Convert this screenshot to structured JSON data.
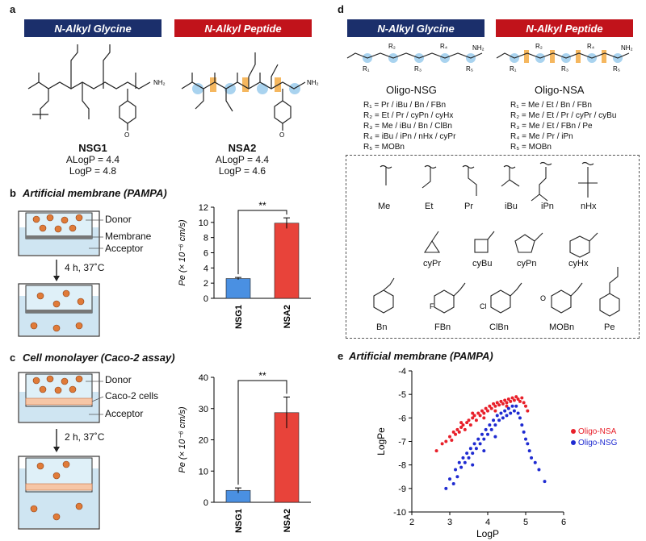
{
  "panels": {
    "a": "a",
    "b": "b",
    "c": "c",
    "d": "d",
    "e": "e"
  },
  "panel_a": {
    "banner_left": "N-Alkyl Glycine",
    "banner_right": "N-Alkyl Peptide",
    "left_name": "NSG1",
    "left_alogp": "ALogP = 4.4",
    "left_logp": "LogP = 4.8",
    "right_name": "NSA2",
    "right_alogp": "ALogP = 4.4",
    "right_logp": "LogP = 4.6",
    "nh2": "NH₂",
    "ome": "O",
    "colors": {
      "navy": "#1b2f6b",
      "red": "#c1131b",
      "highlight_blue": "#a9d3ef",
      "highlight_orange": "#f5b75f"
    }
  },
  "panel_b": {
    "title": "Artificial membrane (PAMPA)",
    "donor": "Donor",
    "membrane": "Membrane",
    "acceptor": "Acceptor",
    "condition": "4 h, 37˚C"
  },
  "panel_c": {
    "title": "Cell monolayer (Caco-2 assay)",
    "donor": "Donor",
    "cells": "Caco-2 cells",
    "acceptor": "Acceptor",
    "condition": "2 h, 37˚C"
  },
  "panel_d": {
    "banner_left": "N-Alkyl Glycine",
    "banner_right": "N-Alkyl Peptide",
    "left_title": "Oligo-NSG",
    "right_title": "Oligo-NSA",
    "left_r": [
      "R₁ = Pr / iBu / Bn / FBn",
      "R₂ = Et / Pr / cyPn / cyHx",
      "R₃ = Me / iBu / Bn / ClBn",
      "R₄ = iBu / iPn / nHx / cyPr",
      "R₅ = MOBn"
    ],
    "right_r": [
      "R₁ = Me / Et / Bn / FBn",
      "R₂ = Me / Et / Pr / cyPr / cyBu",
      "R₃ = Me / Et / FBn / Pe",
      "R₄ = Me / Pr / iPn",
      "R₅ = MOBn"
    ],
    "chain_r": [
      "R₁",
      "R₂",
      "R₃",
      "R₄",
      "R₅"
    ],
    "nh2": "NH₂",
    "sub_row1": [
      "Me",
      "Et",
      "Pr",
      "iBu",
      "iPn",
      "nHx"
    ],
    "sub_row2": [
      "cyPr",
      "cyBu",
      "cyPn",
      "cyHx"
    ],
    "sub_row3": [
      "Bn",
      "FBn",
      "ClBn",
      "MOBn",
      "Pe"
    ],
    "f": "F",
    "cl": "Cl",
    "o": "O"
  },
  "chart_b": {
    "type": "bar",
    "categories": [
      "NSG1",
      "NSA2"
    ],
    "values": [
      2.6,
      9.9
    ],
    "errors": [
      0.15,
      0.7
    ],
    "ylabel": "Pe (× 10⁻⁶ cm/s)",
    "ylim": [
      0,
      12
    ],
    "yticks": [
      "0",
      "2",
      "4",
      "6",
      "8",
      "10",
      "12"
    ],
    "colors": [
      "#4a90e2",
      "#e8433a"
    ],
    "significance": "**"
  },
  "chart_c": {
    "type": "bar",
    "categories": [
      "NSG1",
      "NSA2"
    ],
    "values": [
      3.8,
      28.7
    ],
    "errors": [
      0.8,
      5
    ],
    "ylabel": "Pe (× 10⁻⁶ cm/s)",
    "ylim": [
      0,
      40
    ],
    "yticks": [
      "0",
      "10",
      "20",
      "30",
      "40"
    ],
    "colors": [
      "#4a90e2",
      "#e8433a"
    ],
    "significance": "**"
  },
  "chart_data": {
    "type": "scatter",
    "title": "Artificial membrane (PAMPA)",
    "xlabel": "LogP",
    "ylabel": "LogPe",
    "xlim": [
      2,
      6
    ],
    "ylim": [
      -10,
      -4
    ],
    "xticks": [
      "2",
      "3",
      "4",
      "5",
      "6"
    ],
    "yticks": [
      "-4",
      "-5",
      "-6",
      "-7",
      "-8",
      "-9",
      "-10"
    ],
    "legend_position": "right",
    "series": [
      {
        "name": "Oligo-NSA",
        "color": "#e8202a",
        "points": [
          [
            2.65,
            -7.4
          ],
          [
            2.8,
            -7.1
          ],
          [
            2.9,
            -7.0
          ],
          [
            3.0,
            -6.8
          ],
          [
            3.05,
            -6.95
          ],
          [
            3.1,
            -6.6
          ],
          [
            3.15,
            -6.7
          ],
          [
            3.2,
            -6.5
          ],
          [
            3.25,
            -6.6
          ],
          [
            3.3,
            -6.4
          ],
          [
            3.35,
            -6.3
          ],
          [
            3.4,
            -6.5
          ],
          [
            3.45,
            -6.2
          ],
          [
            3.5,
            -6.1
          ],
          [
            3.55,
            -6.3
          ],
          [
            3.6,
            -6.0
          ],
          [
            3.65,
            -5.9
          ],
          [
            3.7,
            -6.1
          ],
          [
            3.75,
            -5.8
          ],
          [
            3.8,
            -5.9
          ],
          [
            3.85,
            -5.7
          ],
          [
            3.9,
            -5.8
          ],
          [
            3.95,
            -5.6
          ],
          [
            4.0,
            -5.7
          ],
          [
            4.05,
            -5.5
          ],
          [
            4.1,
            -5.6
          ],
          [
            4.15,
            -5.4
          ],
          [
            4.2,
            -5.5
          ],
          [
            4.25,
            -5.35
          ],
          [
            4.3,
            -5.45
          ],
          [
            4.35,
            -5.3
          ],
          [
            4.4,
            -5.4
          ],
          [
            4.45,
            -5.25
          ],
          [
            4.5,
            -5.35
          ],
          [
            4.55,
            -5.2
          ],
          [
            4.6,
            -5.3
          ],
          [
            4.65,
            -5.15
          ],
          [
            4.7,
            -5.25
          ],
          [
            4.75,
            -5.1
          ],
          [
            4.8,
            -5.2
          ],
          [
            4.85,
            -5.3
          ],
          [
            4.9,
            -5.15
          ],
          [
            4.95,
            -5.35
          ],
          [
            5.0,
            -5.5
          ],
          [
            5.05,
            -5.7
          ],
          [
            3.3,
            -6.2
          ],
          [
            3.6,
            -5.8
          ],
          [
            3.9,
            -6.0
          ],
          [
            4.2,
            -5.7
          ],
          [
            4.5,
            -5.5
          ]
        ]
      },
      {
        "name": "Oligo-NSG",
        "color": "#1f2bd1",
        "points": [
          [
            2.9,
            -9.0
          ],
          [
            3.0,
            -8.6
          ],
          [
            3.1,
            -8.8
          ],
          [
            3.15,
            -8.2
          ],
          [
            3.2,
            -8.5
          ],
          [
            3.25,
            -7.9
          ],
          [
            3.3,
            -8.1
          ],
          [
            3.35,
            -7.7
          ],
          [
            3.4,
            -7.9
          ],
          [
            3.45,
            -7.5
          ],
          [
            3.5,
            -7.7
          ],
          [
            3.55,
            -7.3
          ],
          [
            3.6,
            -7.5
          ],
          [
            3.65,
            -7.1
          ],
          [
            3.7,
            -7.3
          ],
          [
            3.75,
            -6.9
          ],
          [
            3.8,
            -7.1
          ],
          [
            3.85,
            -6.7
          ],
          [
            3.9,
            -6.9
          ],
          [
            3.95,
            -6.5
          ],
          [
            4.0,
            -6.7
          ],
          [
            4.05,
            -6.3
          ],
          [
            4.1,
            -6.5
          ],
          [
            4.15,
            -6.1
          ],
          [
            4.2,
            -6.3
          ],
          [
            4.25,
            -5.9
          ],
          [
            4.3,
            -6.1
          ],
          [
            4.35,
            -5.8
          ],
          [
            4.4,
            -6.0
          ],
          [
            4.45,
            -5.7
          ],
          [
            4.5,
            -5.9
          ],
          [
            4.55,
            -5.6
          ],
          [
            4.6,
            -5.8
          ],
          [
            4.65,
            -5.5
          ],
          [
            4.7,
            -5.7
          ],
          [
            4.75,
            -5.5
          ],
          [
            4.8,
            -5.8
          ],
          [
            4.85,
            -6.0
          ],
          [
            4.9,
            -6.3
          ],
          [
            4.95,
            -6.6
          ],
          [
            5.0,
            -6.9
          ],
          [
            5.05,
            -7.1
          ],
          [
            5.1,
            -7.4
          ],
          [
            5.15,
            -7.7
          ],
          [
            5.25,
            -7.9
          ],
          [
            5.35,
            -8.2
          ],
          [
            5.5,
            -8.7
          ],
          [
            3.6,
            -8.0
          ],
          [
            3.9,
            -7.4
          ],
          [
            4.2,
            -6.8
          ]
        ]
      }
    ]
  }
}
